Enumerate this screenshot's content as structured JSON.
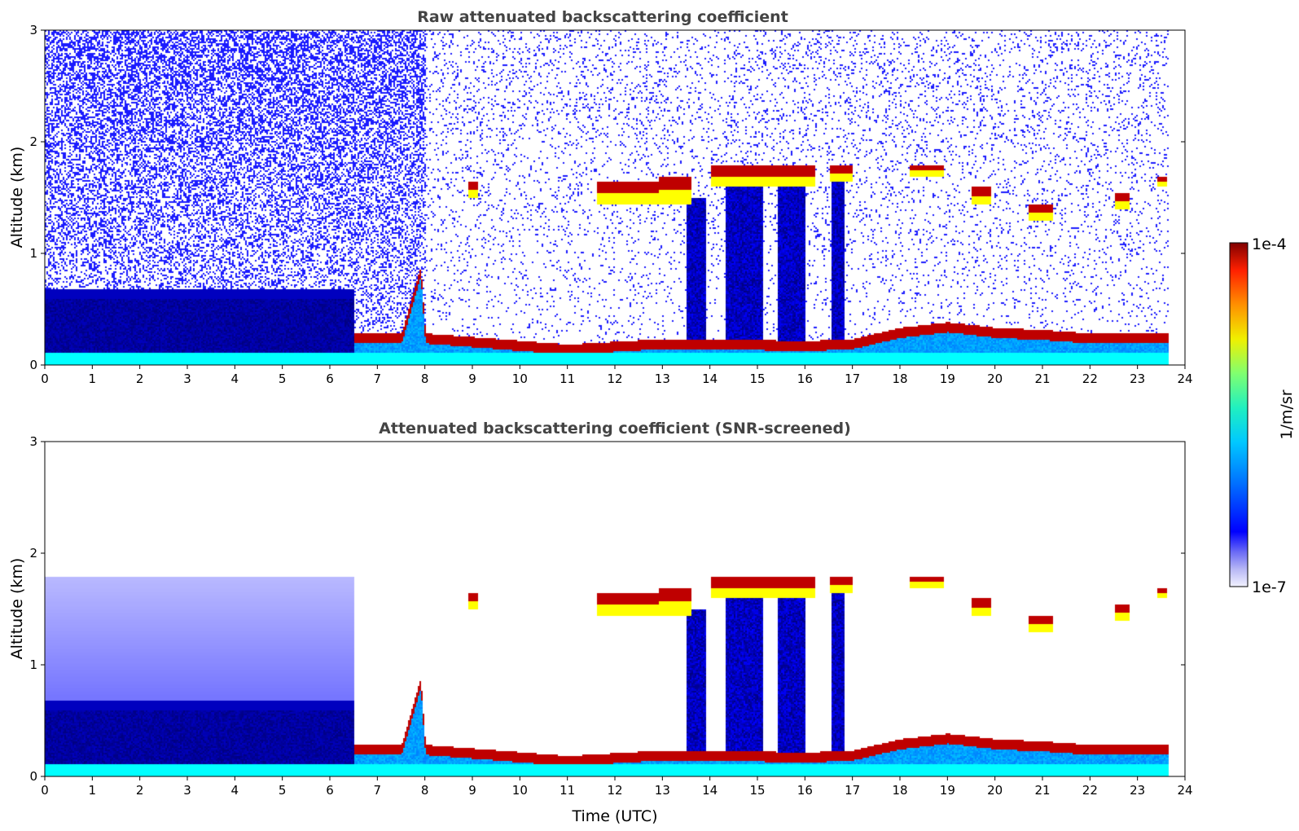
{
  "chart_data": [
    {
      "type": "heatmap",
      "title": "Raw attenuated backscattering coefficient",
      "xlabel": "",
      "ylabel": "Altitude (km)",
      "xlim": [
        0,
        24
      ],
      "ylim": [
        0,
        3
      ],
      "x_ticks": [
        "0",
        "1",
        "2",
        "3",
        "4",
        "5",
        "6",
        "7",
        "8",
        "9",
        "10",
        "11",
        "12",
        "13",
        "14",
        "15",
        "16",
        "17",
        "18",
        "19",
        "20",
        "21",
        "22",
        "23",
        "24"
      ],
      "y_ticks": [
        "0",
        "1",
        "2",
        "3"
      ],
      "data_end_time": 23.65,
      "noise_level": 1.0,
      "boundary_layer_top_km": [
        [
          0,
          0.65
        ],
        [
          6.5,
          0.65
        ],
        [
          6.5,
          0.25
        ],
        [
          7.5,
          0.25
        ],
        [
          7.9,
          0.85
        ],
        [
          8,
          0.25
        ],
        [
          11,
          0.15
        ],
        [
          13,
          0.2
        ],
        [
          14,
          0.2
        ],
        [
          16,
          0.18
        ],
        [
          17,
          0.2
        ],
        [
          18,
          0.3
        ],
        [
          19,
          0.35
        ],
        [
          20,
          0.3
        ],
        [
          21,
          0.28
        ],
        [
          22,
          0.25
        ],
        [
          23,
          0.25
        ],
        [
          23.65,
          0.25
        ]
      ],
      "cloud_layers": [
        {
          "start": 8.9,
          "end": 9.1,
          "base_km": 1.5,
          "top_km": 1.65
        },
        {
          "start": 11.6,
          "end": 12.9,
          "base_km": 1.45,
          "top_km": 1.65
        },
        {
          "start": 12.9,
          "end": 13.6,
          "base_km": 1.45,
          "top_km": 1.7
        },
        {
          "start": 14.0,
          "end": 16.2,
          "base_km": 1.6,
          "top_km": 1.8
        },
        {
          "start": 16.5,
          "end": 17.0,
          "base_km": 1.65,
          "top_km": 1.8
        },
        {
          "start": 18.2,
          "end": 18.9,
          "base_km": 1.7,
          "top_km": 1.8
        },
        {
          "start": 19.5,
          "end": 19.9,
          "base_km": 1.45,
          "top_km": 1.6
        },
        {
          "start": 20.7,
          "end": 21.2,
          "base_km": 1.3,
          "top_km": 1.45
        },
        {
          "start": 22.5,
          "end": 22.8,
          "base_km": 1.4,
          "top_km": 1.55
        },
        {
          "start": 23.4,
          "end": 23.6,
          "base_km": 1.6,
          "top_km": 1.7
        }
      ],
      "precip_columns": [
        {
          "start": 13.5,
          "end": 13.9,
          "to_km": 1.5
        },
        {
          "start": 14.3,
          "end": 15.1,
          "to_km": 1.6
        },
        {
          "start": 15.4,
          "end": 16.0,
          "to_km": 1.6
        },
        {
          "start": 16.55,
          "end": 16.8,
          "to_km": 1.65
        }
      ]
    },
    {
      "type": "heatmap",
      "title": "Attenuated backscattering coefficient (SNR-screened)",
      "xlabel": "Time (UTC)",
      "ylabel": "Altitude (km)",
      "xlim": [
        0,
        24
      ],
      "ylim": [
        0,
        3
      ],
      "x_ticks": [
        "0",
        "1",
        "2",
        "3",
        "4",
        "5",
        "6",
        "7",
        "8",
        "9",
        "10",
        "11",
        "12",
        "13",
        "14",
        "15",
        "16",
        "17",
        "18",
        "19",
        "20",
        "21",
        "22",
        "23",
        "24"
      ],
      "y_ticks": [
        "0",
        "1",
        "2",
        "3"
      ],
      "data_end_time": 23.65,
      "noise_level": 0.0,
      "boundary_layer_top_km": [
        [
          0,
          0.65
        ],
        [
          6.5,
          0.65
        ],
        [
          6.5,
          0.25
        ],
        [
          7.5,
          0.25
        ],
        [
          7.9,
          0.85
        ],
        [
          8,
          0.25
        ],
        [
          11,
          0.15
        ],
        [
          13,
          0.2
        ],
        [
          14,
          0.2
        ],
        [
          16,
          0.18
        ],
        [
          17,
          0.2
        ],
        [
          18,
          0.3
        ],
        [
          19,
          0.35
        ],
        [
          20,
          0.3
        ],
        [
          21,
          0.28
        ],
        [
          22,
          0.25
        ],
        [
          23,
          0.25
        ],
        [
          23.65,
          0.25
        ]
      ],
      "cloud_layers": [
        {
          "start": 8.9,
          "end": 9.1,
          "base_km": 1.5,
          "top_km": 1.65
        },
        {
          "start": 11.6,
          "end": 12.9,
          "base_km": 1.45,
          "top_km": 1.65
        },
        {
          "start": 12.9,
          "end": 13.6,
          "base_km": 1.45,
          "top_km": 1.7
        },
        {
          "start": 14.0,
          "end": 16.2,
          "base_km": 1.6,
          "top_km": 1.8
        },
        {
          "start": 16.5,
          "end": 17.0,
          "base_km": 1.65,
          "top_km": 1.8
        },
        {
          "start": 18.2,
          "end": 18.9,
          "base_km": 1.7,
          "top_km": 1.8
        },
        {
          "start": 19.5,
          "end": 19.9,
          "base_km": 1.45,
          "top_km": 1.6
        },
        {
          "start": 20.7,
          "end": 21.2,
          "base_km": 1.3,
          "top_km": 1.45
        },
        {
          "start": 22.5,
          "end": 22.8,
          "base_km": 1.4,
          "top_km": 1.55
        },
        {
          "start": 23.4,
          "end": 23.6,
          "base_km": 1.6,
          "top_km": 1.7
        }
      ],
      "precip_columns": [
        {
          "start": 13.5,
          "end": 13.9,
          "to_km": 1.5
        },
        {
          "start": 14.3,
          "end": 15.1,
          "to_km": 1.6
        },
        {
          "start": 15.4,
          "end": 16.0,
          "to_km": 1.6
        },
        {
          "start": 16.55,
          "end": 16.8,
          "to_km": 1.65
        }
      ]
    }
  ],
  "colorbar": {
    "label": "1/m/sr",
    "max_label": "1e-4",
    "min_label": "1e-7",
    "colormap": "jet",
    "scale": "log"
  }
}
